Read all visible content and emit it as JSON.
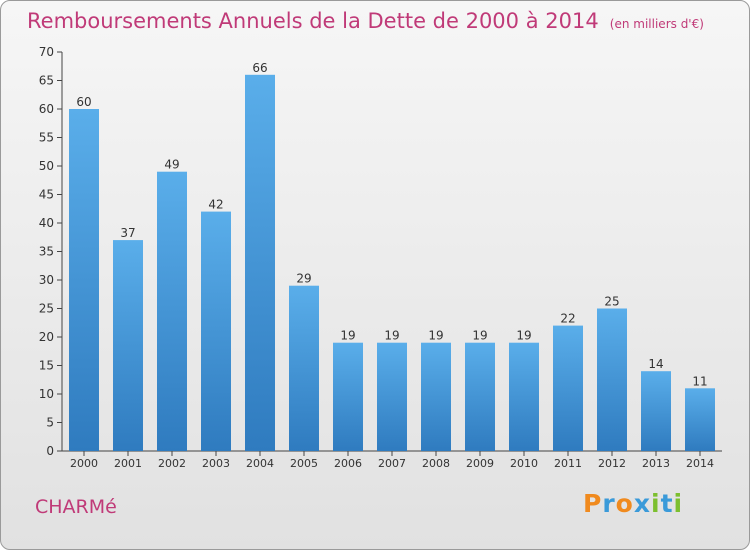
{
  "chart_data": {
    "type": "bar",
    "title": "Remboursements Annuels de la Dette de 2000 à 2014",
    "subtitle": "(en milliers d'€)",
    "categories": [
      "2000",
      "2001",
      "2002",
      "2003",
      "2004",
      "2005",
      "2006",
      "2007",
      "2008",
      "2009",
      "2010",
      "2011",
      "2012",
      "2013",
      "2014"
    ],
    "values": [
      60,
      37,
      49,
      42,
      66,
      29,
      19,
      19,
      19,
      19,
      19,
      22,
      25,
      14,
      11
    ],
    "xlabel": "",
    "ylabel": "",
    "ylim": [
      0,
      70
    ],
    "yticks": [
      0,
      5,
      10,
      15,
      20,
      25,
      30,
      35,
      40,
      45,
      50,
      55,
      60,
      65,
      70
    ],
    "grid": false,
    "bar_color": "#3a8fd6"
  },
  "footer": {
    "commune": "CHARMé",
    "logo": {
      "text": "Proxiti",
      "letters": [
        {
          "ch": "P",
          "color": "#f08a1e"
        },
        {
          "ch": "r",
          "color": "#3a9ad9"
        },
        {
          "ch": "o",
          "color": "#f08a1e"
        },
        {
          "ch": "x",
          "color": "#3a9ad9"
        },
        {
          "ch": "i",
          "color": "#7cbf2f"
        },
        {
          "ch": "t",
          "color": "#3a9ad9"
        },
        {
          "ch": "i",
          "color": "#7cbf2f"
        }
      ]
    }
  }
}
